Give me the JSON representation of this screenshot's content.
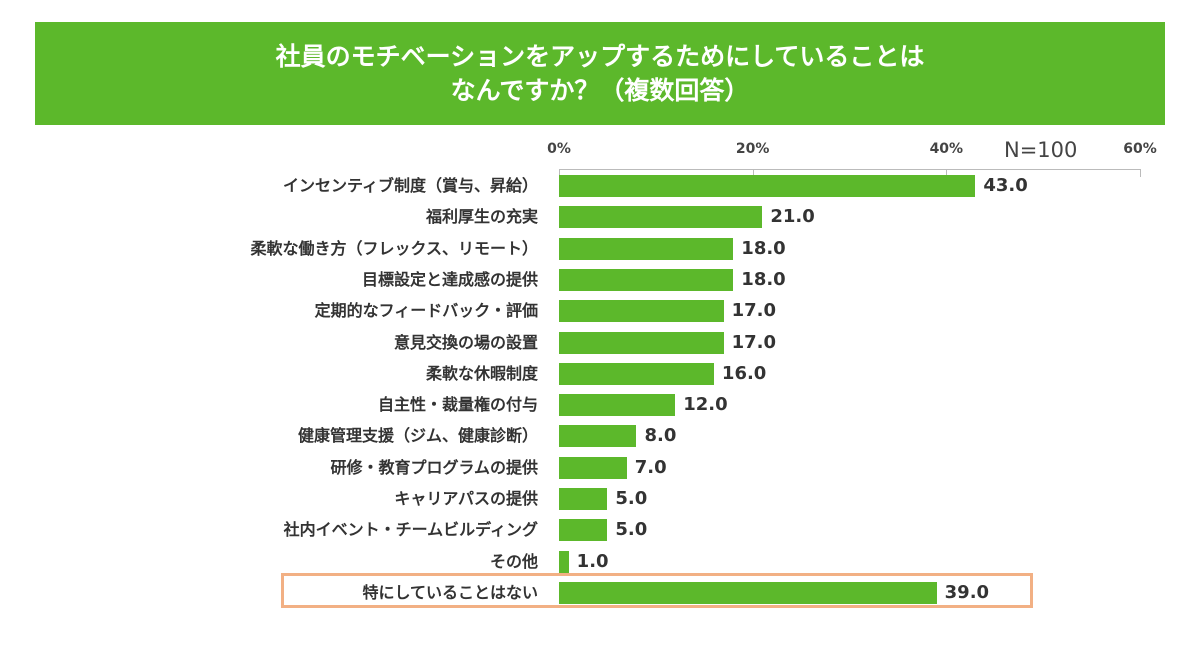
{
  "chart_data": {
    "type": "bar",
    "orientation": "horizontal",
    "title_lines": [
      "社員のモチベーションをアップするためにしていることは",
      "なんですか？（複数回答）"
    ],
    "sample_size": "N=100",
    "x_ticks": [
      "0%",
      "20%",
      "40%",
      "60%"
    ],
    "xlim": [
      0,
      60
    ],
    "categories": [
      "インセンティブ制度（賞与、昇給）",
      "福利厚生の充実",
      "柔軟な働き方（フレックス、リモート）",
      "目標設定と達成感の提供",
      "定期的なフィードバック・評価",
      "意見交換の場の設置",
      "柔軟な休暇制度",
      "自主性・裁量権の付与",
      "健康管理支援（ジム、健康診断）",
      "研修・教育プログラムの提供",
      "キャリアパスの提供",
      "社内イベント・チームビルディング",
      "その他",
      "特にしていることはない"
    ],
    "values": [
      43.0,
      21.0,
      18.0,
      18.0,
      17.0,
      17.0,
      16.0,
      12.0,
      8.0,
      7.0,
      5.0,
      5.0,
      1.0,
      39.0
    ],
    "value_labels": [
      "43.0",
      "21.0",
      "18.0",
      "18.0",
      "17.0",
      "17.0",
      "16.0",
      "12.0",
      "8.0",
      "7.0",
      "5.0",
      "5.0",
      "1.0",
      "39.0"
    ],
    "highlighted_category": "特にしていることはない",
    "colors": {
      "bar": "#5cb82b",
      "highlight": "#f2b084",
      "banner": "#5cb82b"
    }
  }
}
